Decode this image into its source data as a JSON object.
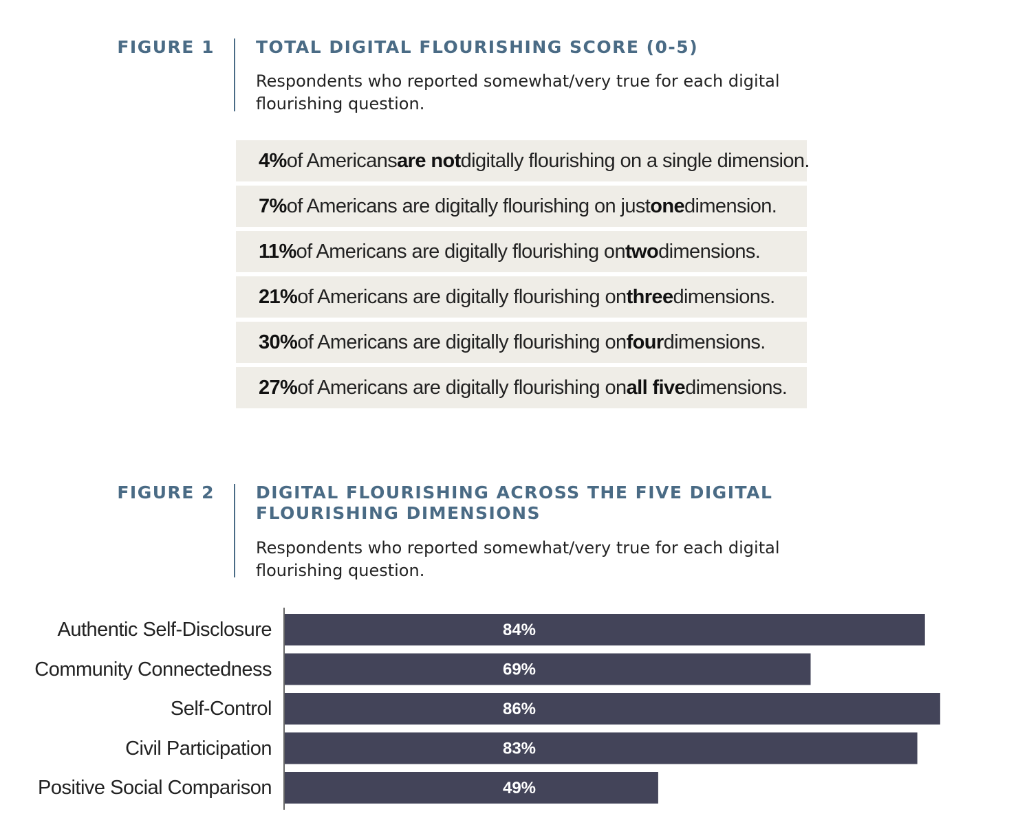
{
  "figure1": {
    "label": "FIGURE 1",
    "title": "TOTAL DIGITAL FLOURISHING SCORE (0-5)",
    "subtitle": "Respondents who reported somewhat/very true for each digital flourishing question.",
    "rows": [
      {
        "pct": "4%",
        "mid": " of Americans ",
        "emph": "are not",
        "tail": " digitally flourishing on a single dimension."
      },
      {
        "pct": "7%",
        "mid": " of Americans are digitally flourishing on just ",
        "emph": "one",
        "tail": " dimension."
      },
      {
        "pct": "11%",
        "mid": " of Americans are digitally flourishing on ",
        "emph": "two",
        "tail": " dimensions."
      },
      {
        "pct": "21%",
        "mid": " of Americans are digitally flourishing on ",
        "emph": "three",
        "tail": " dimensions."
      },
      {
        "pct": "30%",
        "mid": " of Americans are digitally flourishing on ",
        "emph": "four",
        "tail": " dimensions."
      },
      {
        "pct": "27%",
        "mid": " of Americans are digitally flourishing on ",
        "emph": "all five",
        "tail": " dimensions."
      }
    ]
  },
  "figure2": {
    "label": "FIGURE 2",
    "title_line1": "DIGITAL FLOURISHING ACROSS THE FIVE DIGITAL",
    "title_line2": "FLOURISHING DIMENSIONS",
    "subtitle": "Respondents who reported somewhat/very true for each digital flourishing question."
  },
  "chart_data": {
    "type": "bar",
    "orientation": "horizontal",
    "categories": [
      "Authentic Self-Disclosure",
      "Community Connectedness",
      "Self-Control",
      "Civil Participation",
      "Positive Social Comparison"
    ],
    "values": [
      84,
      69,
      86,
      83,
      49
    ],
    "value_labels": [
      "84%",
      "69%",
      "86%",
      "83%",
      "49%"
    ],
    "xlim": [
      0,
      100
    ],
    "bar_color": "#434459",
    "grid": false
  },
  "colors": {
    "accent": "#4a6b85",
    "row_background": "#efede7",
    "bar": "#434459"
  }
}
